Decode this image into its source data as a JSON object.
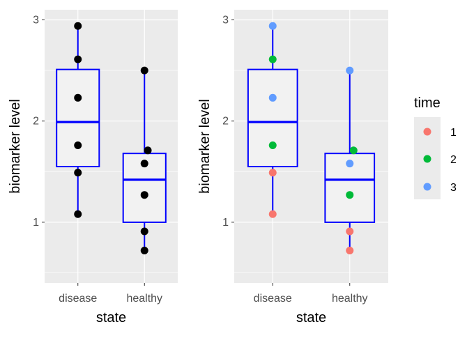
{
  "chart_data": [
    {
      "type": "box",
      "panel": "left",
      "xlabel": "state",
      "ylabel": "biomarker level",
      "categories": [
        "disease",
        "healthy"
      ],
      "ylim": [
        0.4,
        3.1
      ],
      "yticks": [
        1,
        2,
        3
      ],
      "box_color": "#0000ff",
      "point_color": "#000000",
      "boxes": [
        {
          "category": "disease",
          "lower": 1.08,
          "q1": 1.55,
          "median": 1.99,
          "q3": 2.51,
          "upper": 2.94
        },
        {
          "category": "healthy",
          "lower": 0.72,
          "q1": 1.0,
          "median": 1.42,
          "q3": 1.68,
          "upper": 2.5
        }
      ],
      "points": [
        {
          "category": "disease",
          "y": 2.94,
          "time": "3"
        },
        {
          "category": "disease",
          "y": 2.61,
          "time": "2"
        },
        {
          "category": "disease",
          "y": 2.23,
          "time": "3"
        },
        {
          "category": "disease",
          "y": 1.76,
          "time": "2"
        },
        {
          "category": "disease",
          "y": 1.49,
          "time": "1"
        },
        {
          "category": "disease",
          "y": 1.08,
          "time": "1"
        },
        {
          "category": "healthy",
          "y": 2.5,
          "time": "3",
          "dx": 0
        },
        {
          "category": "healthy",
          "y": 1.71,
          "time": "2",
          "dx": 0.05
        },
        {
          "category": "healthy",
          "y": 1.58,
          "time": "3",
          "dx": 0
        },
        {
          "category": "healthy",
          "y": 1.27,
          "time": "2",
          "dx": 0
        },
        {
          "category": "healthy",
          "y": 0.91,
          "time": "1",
          "dx": 0
        },
        {
          "category": "healthy",
          "y": 0.72,
          "time": "1",
          "dx": 0
        }
      ]
    },
    {
      "type": "box",
      "panel": "right",
      "xlabel": "state",
      "ylabel": "biomarker level",
      "categories": [
        "disease",
        "healthy"
      ],
      "ylim": [
        0.4,
        3.1
      ],
      "yticks": [
        1,
        2,
        3
      ],
      "box_color": "#0000ff",
      "color_by": "time",
      "boxes": [
        {
          "category": "disease",
          "lower": 1.08,
          "q1": 1.55,
          "median": 1.99,
          "q3": 2.51,
          "upper": 2.94
        },
        {
          "category": "healthy",
          "lower": 0.72,
          "q1": 1.0,
          "median": 1.42,
          "q3": 1.68,
          "upper": 2.5
        }
      ],
      "points": [
        {
          "category": "disease",
          "y": 2.94,
          "time": "3"
        },
        {
          "category": "disease",
          "y": 2.61,
          "time": "2"
        },
        {
          "category": "disease",
          "y": 2.23,
          "time": "3"
        },
        {
          "category": "disease",
          "y": 1.76,
          "time": "2"
        },
        {
          "category": "disease",
          "y": 1.49,
          "time": "1"
        },
        {
          "category": "disease",
          "y": 1.08,
          "time": "1"
        },
        {
          "category": "healthy",
          "y": 2.5,
          "time": "3",
          "dx": 0
        },
        {
          "category": "healthy",
          "y": 1.71,
          "time": "2",
          "dx": 0.05
        },
        {
          "category": "healthy",
          "y": 1.58,
          "time": "3",
          "dx": 0
        },
        {
          "category": "healthy",
          "y": 1.27,
          "time": "2",
          "dx": 0
        },
        {
          "category": "healthy",
          "y": 0.91,
          "time": "1",
          "dx": 0
        },
        {
          "category": "healthy",
          "y": 0.72,
          "time": "1",
          "dx": 0
        }
      ]
    }
  ],
  "legend": {
    "title": "time",
    "placement": "right",
    "items": [
      {
        "label": "1",
        "color": "#f8766d"
      },
      {
        "label": "2",
        "color": "#00ba38"
      },
      {
        "label": "3",
        "color": "#619cff"
      }
    ]
  },
  "theme": {
    "panel_bg": "#ebebeb",
    "grid_major": "#ffffff",
    "box_fill": "#f2f2f2"
  }
}
